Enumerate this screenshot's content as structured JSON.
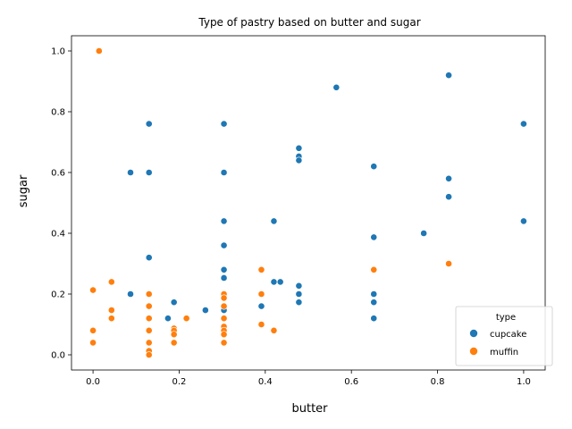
{
  "chart_data": {
    "type": "scatter",
    "title": "Type of pastry based on butter and sugar",
    "xlabel": "butter",
    "ylabel": "sugar",
    "xlim": [
      -0.05,
      1.05
    ],
    "ylim": [
      -0.05,
      1.05
    ],
    "xticks": [
      "0.0",
      "0.2",
      "0.4",
      "0.6",
      "0.8",
      "1.0"
    ],
    "yticks": [
      "0.0",
      "0.2",
      "0.4",
      "0.6",
      "0.8",
      "1.0"
    ],
    "grid": false,
    "legend": {
      "title": "type",
      "placement": "lower-right"
    },
    "series": [
      {
        "name": "cupcake",
        "color": "#1f77b4",
        "points": [
          [
            0.13,
            0.76
          ],
          [
            0.304,
            0.76
          ],
          [
            0.087,
            0.6
          ],
          [
            0.13,
            0.6
          ],
          [
            0.304,
            0.6
          ],
          [
            0.13,
            0.32
          ],
          [
            0.087,
            0.2
          ],
          [
            0.174,
            0.12
          ],
          [
            0.188,
            0.173
          ],
          [
            0.261,
            0.147
          ],
          [
            0.304,
            0.44
          ],
          [
            0.304,
            0.36
          ],
          [
            0.304,
            0.28
          ],
          [
            0.304,
            0.253
          ],
          [
            0.304,
            0.147
          ],
          [
            0.391,
            0.16
          ],
          [
            0.42,
            0.44
          ],
          [
            0.42,
            0.24
          ],
          [
            0.435,
            0.24
          ],
          [
            0.478,
            0.68
          ],
          [
            0.478,
            0.653
          ],
          [
            0.478,
            0.64
          ],
          [
            0.478,
            0.227
          ],
          [
            0.478,
            0.2
          ],
          [
            0.478,
            0.173
          ],
          [
            0.565,
            0.88
          ],
          [
            0.652,
            0.62
          ],
          [
            0.652,
            0.387
          ],
          [
            0.652,
            0.2
          ],
          [
            0.652,
            0.173
          ],
          [
            0.652,
            0.12
          ],
          [
            0.768,
            0.4
          ],
          [
            0.826,
            0.92
          ],
          [
            0.826,
            0.58
          ],
          [
            0.826,
            0.52
          ],
          [
            1.0,
            0.76
          ],
          [
            1.0,
            0.44
          ]
        ]
      },
      {
        "name": "muffin",
        "color": "#ff7f0e",
        "points": [
          [
            0.014,
            1.0
          ],
          [
            0.0,
            0.213
          ],
          [
            0.0,
            0.08
          ],
          [
            0.0,
            0.04
          ],
          [
            0.043,
            0.24
          ],
          [
            0.043,
            0.147
          ],
          [
            0.043,
            0.12
          ],
          [
            0.13,
            0.2
          ],
          [
            0.13,
            0.16
          ],
          [
            0.13,
            0.12
          ],
          [
            0.13,
            0.08
          ],
          [
            0.13,
            0.04
          ],
          [
            0.13,
            0.013
          ],
          [
            0.13,
            0.0
          ],
          [
            0.188,
            0.087
          ],
          [
            0.188,
            0.08
          ],
          [
            0.188,
            0.067
          ],
          [
            0.188,
            0.04
          ],
          [
            0.217,
            0.12
          ],
          [
            0.304,
            0.2
          ],
          [
            0.304,
            0.187
          ],
          [
            0.304,
            0.16
          ],
          [
            0.304,
            0.12
          ],
          [
            0.304,
            0.093
          ],
          [
            0.304,
            0.08
          ],
          [
            0.304,
            0.067
          ],
          [
            0.304,
            0.04
          ],
          [
            0.391,
            0.28
          ],
          [
            0.391,
            0.2
          ],
          [
            0.391,
            0.1
          ],
          [
            0.42,
            0.08
          ],
          [
            0.652,
            0.28
          ],
          [
            0.826,
            0.3
          ]
        ]
      }
    ]
  }
}
